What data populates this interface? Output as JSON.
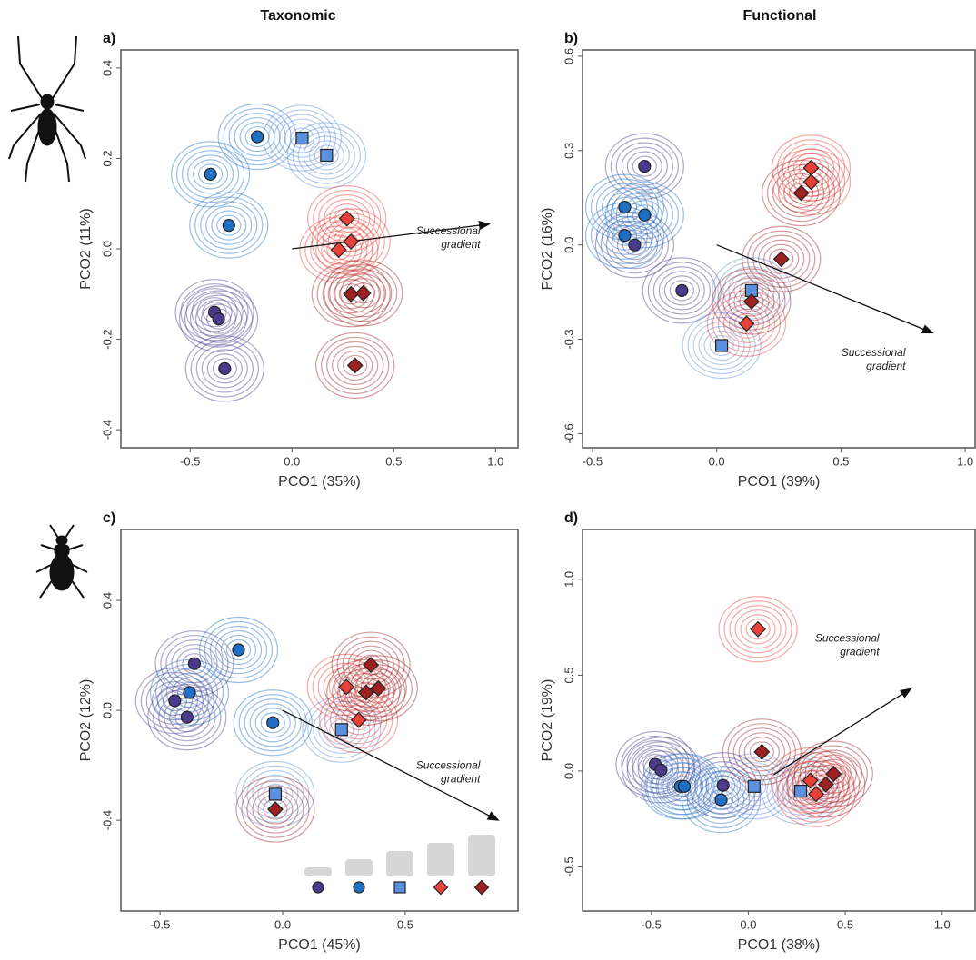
{
  "column_titles": [
    "Taxonomic",
    "Functional"
  ],
  "chart_data": [
    {
      "type": "scatter",
      "title": "a)",
      "xlabel": "PCO1 (35%)",
      "ylabel": "PCO2 (11%)",
      "xlim": [
        -0.84,
        1.11
      ],
      "ylim": [
        -0.44,
        0.44
      ],
      "xticks": [
        -0.5,
        {
          "value": 0,
          "label": "0.0"
        },
        0.5,
        {
          "value": 1,
          "label": "1.0"
        }
      ],
      "yticks": [
        -0.4,
        -0.2,
        {
          "value": 0,
          "label": "0.0"
        },
        0.2,
        0.4
      ],
      "annotation": [
        "Successional",
        "gradient"
      ],
      "arrow": {
        "x": [
          0,
          0.97
        ],
        "y": [
          0,
          0.055
        ]
      },
      "series": [
        {
          "color": "#4b3a8c",
          "marker": "circle",
          "x": [
            -0.38,
            -0.36,
            -0.33
          ],
          "y": [
            -0.14,
            -0.155,
            -0.265
          ]
        },
        {
          "color": "#1f6fc5",
          "marker": "circle",
          "x": [
            -0.4,
            -0.17,
            -0.31
          ],
          "y": [
            0.165,
            0.248,
            0.052
          ]
        },
        {
          "color": "#5b8fe0",
          "marker": "square",
          "x": [
            0.05,
            0.17
          ],
          "y": [
            0.245,
            0.207
          ]
        },
        {
          "color": "#e8413a",
          "marker": "diamond",
          "x": [
            0.27,
            0.29,
            0.23
          ],
          "y": [
            0.067,
            0.016,
            -0.002
          ]
        },
        {
          "color": "#9e2020",
          "marker": "diamond",
          "x": [
            0.29,
            0.35,
            0.31
          ],
          "y": [
            -0.1,
            -0.098,
            -0.258
          ]
        }
      ]
    },
    {
      "type": "scatter",
      "title": "b)",
      "xlabel": "PCO1 (39%)",
      "ylabel": "PCO2 (16%)",
      "xlim": [
        -0.54,
        1.04
      ],
      "ylim": [
        -0.645,
        0.62
      ],
      "xticks": [
        -0.5,
        {
          "value": 0,
          "label": "0.0"
        },
        0.5,
        {
          "value": 1,
          "label": "1.0"
        }
      ],
      "yticks": [
        -0.6,
        -0.3,
        {
          "value": 0,
          "label": "0.0"
        },
        0.3,
        0.6
      ],
      "annotation": [
        "Successional",
        "gradient"
      ],
      "arrow": {
        "x": [
          0,
          0.87
        ],
        "y": [
          0,
          -0.28
        ]
      },
      "series": [
        {
          "color": "#4b3a8c",
          "marker": "circle",
          "x": [
            -0.29,
            -0.33,
            -0.14
          ],
          "y": [
            0.25,
            0.0,
            -0.145
          ]
        },
        {
          "color": "#1f6fc5",
          "marker": "circle",
          "x": [
            -0.37,
            -0.37,
            -0.29
          ],
          "y": [
            0.12,
            0.03,
            0.095
          ]
        },
        {
          "color": "#5b8fe0",
          "marker": "square",
          "x": [
            0.14,
            0.02
          ],
          "y": [
            -0.145,
            -0.32
          ]
        },
        {
          "color": "#e8413a",
          "marker": "diamond",
          "x": [
            0.38,
            0.38,
            0.12
          ],
          "y": [
            0.245,
            0.2,
            -0.25
          ]
        },
        {
          "color": "#9e2020",
          "marker": "diamond",
          "x": [
            0.34,
            0.26,
            0.14
          ],
          "y": [
            0.165,
            -0.045,
            -0.18
          ]
        }
      ]
    },
    {
      "type": "scatter",
      "title": "c)",
      "xlabel": "PCO1 (45%)",
      "ylabel": "PCO2 (12%)",
      "xlim": [
        -0.66,
        0.96
      ],
      "ylim": [
        -0.73,
        0.658
      ],
      "xticks": [
        -0.5,
        {
          "value": 0,
          "label": "0.0"
        },
        0.5
      ],
      "yticks": [
        -0.4,
        {
          "value": 0,
          "label": "0.0"
        },
        0.4
      ],
      "annotation": [
        "Successional",
        "gradient"
      ],
      "arrow": {
        "x": [
          0,
          0.88
        ],
        "y": [
          0,
          -0.4
        ]
      },
      "legend": "lower right",
      "series": [
        {
          "color": "#4b3a8c",
          "marker": "circle",
          "x": [
            -0.36,
            -0.44,
            -0.39
          ],
          "y": [
            0.17,
            0.035,
            -0.025
          ]
        },
        {
          "color": "#1f6fc5",
          "marker": "circle",
          "x": [
            -0.38,
            -0.18,
            -0.04
          ],
          "y": [
            0.065,
            0.22,
            -0.045
          ]
        },
        {
          "color": "#5b8fe0",
          "marker": "square",
          "x": [
            0.24,
            -0.03
          ],
          "y": [
            -0.07,
            -0.305
          ]
        },
        {
          "color": "#e8413a",
          "marker": "diamond",
          "x": [
            0.26,
            0.31
          ],
          "y": [
            0.085,
            -0.035
          ]
        },
        {
          "color": "#9e2020",
          "marker": "diamond",
          "x": [
            0.36,
            0.34,
            0.39,
            -0.03
          ],
          "y": [
            0.165,
            0.065,
            0.08,
            -0.36
          ]
        }
      ]
    },
    {
      "type": "scatter",
      "title": "d)",
      "xlabel": "PCO1 (38%)",
      "ylabel": "PCO2 (19%)",
      "xlim": [
        -0.855,
        1.17
      ],
      "ylim": [
        -0.73,
        1.26
      ],
      "xticks": [
        -0.5,
        {
          "value": 0,
          "label": "0.0"
        },
        0.5,
        {
          "value": 1,
          "label": "1.0"
        }
      ],
      "yticks": [
        -0.5,
        {
          "value": 0,
          "label": "0.0"
        },
        0.5,
        {
          "value": 1,
          "label": "1.0"
        }
      ],
      "annotation": [
        "Successional",
        "gradient"
      ],
      "arrow": {
        "x": [
          0.13,
          0.84
        ],
        "y": [
          -0.02,
          0.43
        ]
      },
      "series": [
        {
          "color": "#4b3a8c",
          "marker": "circle",
          "x": [
            -0.48,
            -0.45,
            -0.13
          ],
          "y": [
            0.035,
            0.005,
            -0.075
          ]
        },
        {
          "color": "#1f6fc5",
          "marker": "circle",
          "x": [
            -0.35,
            -0.33,
            -0.14
          ],
          "y": [
            -0.08,
            -0.08,
            -0.15
          ]
        },
        {
          "color": "#5b8fe0",
          "marker": "square",
          "x": [
            0.03,
            0.27
          ],
          "y": [
            -0.08,
            -0.105
          ]
        },
        {
          "color": "#e8413a",
          "marker": "diamond",
          "x": [
            0.05,
            0.32,
            0.35
          ],
          "y": [
            0.74,
            -0.05,
            -0.12
          ]
        },
        {
          "color": "#9e2020",
          "marker": "diamond",
          "x": [
            0.07,
            0.4,
            0.44
          ],
          "y": [
            0.1,
            -0.07,
            -0.015
          ]
        }
      ]
    }
  ]
}
